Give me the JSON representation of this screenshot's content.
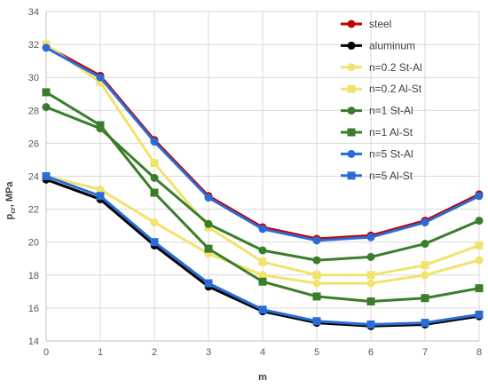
{
  "chart_data": {
    "type": "line",
    "title": "",
    "xlabel": "m",
    "ylabel_main": "p",
    "ylabel_sub": "cr",
    "ylabel_suffix": ", MPa",
    "x": [
      0,
      1,
      2,
      3,
      4,
      5,
      6,
      7,
      8
    ],
    "xlim": [
      0,
      8
    ],
    "ylim": [
      14,
      34
    ],
    "yticks": [
      14,
      16,
      18,
      20,
      22,
      24,
      26,
      28,
      30,
      32,
      34
    ],
    "grid": true,
    "legend_position": "top-right",
    "series": [
      {
        "name": "steel",
        "color": "#c00000",
        "marker": "circle",
        "values": [
          31.9,
          30.1,
          26.2,
          22.8,
          20.9,
          20.2,
          20.4,
          21.3,
          22.9
        ]
      },
      {
        "name": "aluminum",
        "color": "#000000",
        "marker": "circle",
        "values": [
          23.8,
          22.6,
          19.8,
          17.3,
          15.8,
          15.1,
          14.9,
          15.0,
          15.5
        ]
      },
      {
        "name": "n=0.2 St-Al",
        "color": "#f2e26e",
        "marker": "circle",
        "values": [
          24.0,
          23.2,
          21.2,
          19.3,
          18.0,
          17.5,
          17.5,
          18.0,
          18.9
        ]
      },
      {
        "name": "n=0.2 Al-St",
        "color": "#f2e26e",
        "marker": "square",
        "values": [
          32.0,
          29.7,
          24.8,
          20.9,
          18.8,
          18.0,
          18.0,
          18.6,
          19.8
        ]
      },
      {
        "name": "n=1 St-Al",
        "color": "#3a7d2a",
        "marker": "circle",
        "values": [
          28.2,
          26.9,
          23.9,
          21.1,
          19.5,
          18.9,
          19.1,
          19.9,
          21.3
        ]
      },
      {
        "name": "n=1 Al-St",
        "color": "#3a7d2a",
        "marker": "square",
        "values": [
          29.1,
          27.1,
          23.0,
          19.6,
          17.6,
          16.7,
          16.4,
          16.6,
          17.2
        ]
      },
      {
        "name": "n=5 St-Al",
        "color": "#2b6bd6",
        "marker": "circle",
        "values": [
          31.8,
          30.0,
          26.1,
          22.7,
          20.8,
          20.1,
          20.3,
          21.2,
          22.8
        ]
      },
      {
        "name": "n=5  Al-St",
        "color": "#2b6bd6",
        "marker": "square",
        "values": [
          24.0,
          22.8,
          20.0,
          17.5,
          15.9,
          15.2,
          15.0,
          15.1,
          15.6
        ]
      }
    ]
  }
}
